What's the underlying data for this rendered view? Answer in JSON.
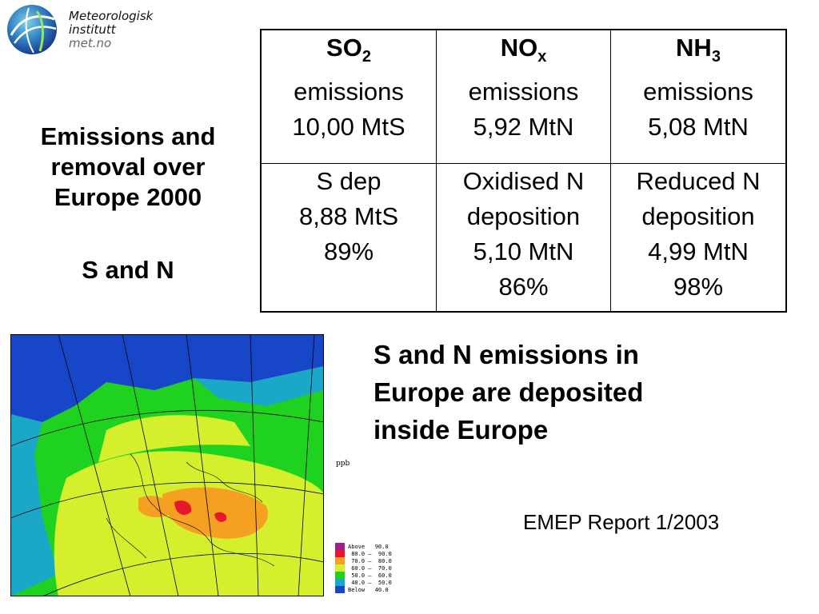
{
  "logo": {
    "line1": "Meteorologisk",
    "line2": "institutt",
    "line3": "met.no"
  },
  "side": {
    "title_line1": "Emissions and",
    "title_line2": "removal over",
    "title_line3": "Europe 2000",
    "subtitle": "S and N"
  },
  "table": {
    "headers": [
      {
        "base": "SO",
        "sub": "2",
        "line2": "emissions",
        "line3": "10,00 MtS"
      },
      {
        "base": "NO",
        "sub": "x",
        "line2": "emissions",
        "line3": "5,92 MtN"
      },
      {
        "base": "NH",
        "sub": "3",
        "line2": "emissions",
        "line3": "5,08 MtN"
      }
    ],
    "deposition": [
      {
        "line1": "S dep",
        "line2": "8,88 MtS",
        "line3": "89%",
        "line4": ""
      },
      {
        "line1": "Oxidised N",
        "line2": "deposition",
        "line3": "5,10 MtN",
        "line4": "86%"
      },
      {
        "line1": "Reduced N",
        "line2": "deposition",
        "line3": "4,99 MtN",
        "line4": "98%"
      }
    ]
  },
  "map": {
    "unit": "ppb",
    "legend": [
      {
        "label": "Above   90.0",
        "color": "#a01f8c"
      },
      {
        "label": " 80.0 –  90.0",
        "color": "#e8172b"
      },
      {
        "label": " 70.0 –  80.0",
        "color": "#f5a020"
      },
      {
        "label": " 60.0 –  70.0",
        "color": "#d6ef2c"
      },
      {
        "label": " 50.0 –  60.0",
        "color": "#1fd21f"
      },
      {
        "label": " 40.0 –  50.0",
        "color": "#1aa7c8"
      },
      {
        "label": "Below   40.0",
        "color": "#1846c8"
      }
    ]
  },
  "conclusion": {
    "line1": "S and N emissions in",
    "line2": "Europe are deposited",
    "line3": "inside Europe"
  },
  "source": "EMEP Report 1/2003"
}
